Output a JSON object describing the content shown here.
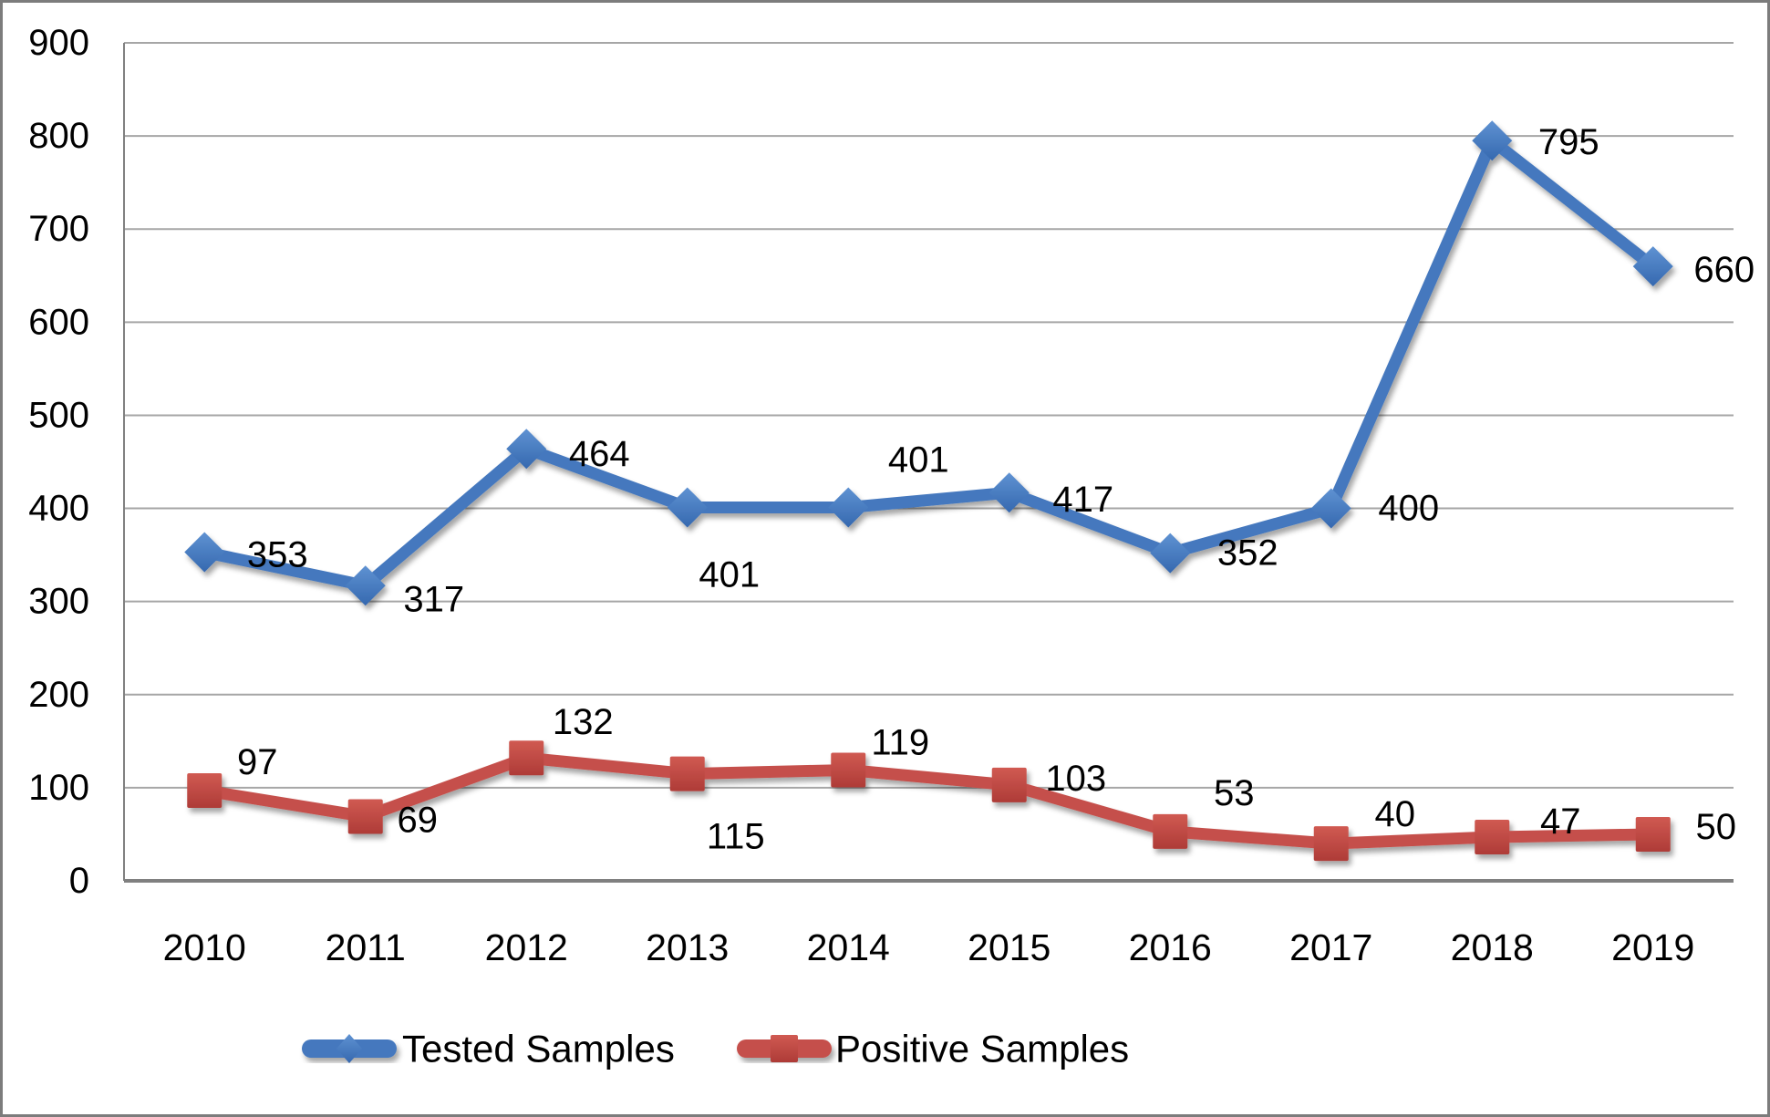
{
  "frame": {
    "background": "#FFFFFF",
    "border_color": "#7C7C7C"
  },
  "chart_data": {
    "type": "line",
    "categories": [
      "2010",
      "2011",
      "2012",
      "2013",
      "2014",
      "2015",
      "2016",
      "2017",
      "2018",
      "2019"
    ],
    "series": [
      {
        "name": "Tested Samples",
        "marker": "diamond",
        "line_color": "#4478BE",
        "marker_color_top": "#5F92D2",
        "marker_color_bottom": "#3568AF",
        "values": [
          353,
          317,
          464,
          401,
          401,
          417,
          352,
          400,
          795,
          660
        ],
        "data_labels": [
          "353",
          "317",
          "464",
          "401",
          "401",
          "417",
          "352",
          "400",
          "795",
          "660"
        ],
        "label_offsets": [
          [
            80,
            3
          ],
          [
            75,
            15
          ],
          [
            80,
            6
          ],
          [
            46,
            74
          ],
          [
            77,
            -52
          ],
          [
            81,
            8
          ],
          [
            85,
            0
          ],
          [
            85,
            0
          ],
          [
            84,
            2
          ],
          [
            78,
            4
          ]
        ]
      },
      {
        "name": "Positive Samples",
        "marker": "square",
        "line_color": "#C5504B",
        "marker_color_top": "#D05A52",
        "marker_color_bottom": "#AE3B37",
        "values": [
          97,
          69,
          132,
          115,
          119,
          103,
          53,
          40,
          47,
          50
        ],
        "data_labels": [
          "97",
          "69",
          "132",
          "115",
          "119",
          "103",
          "53",
          "40",
          "47",
          "50"
        ],
        "label_offsets": [
          [
            58,
            -31
          ],
          [
            57,
            4
          ],
          [
            62,
            -39
          ],
          [
            53,
            69
          ],
          [
            57,
            -30
          ],
          [
            73,
            -7
          ],
          [
            70,
            -42
          ],
          [
            70,
            -32
          ],
          [
            75,
            -17
          ],
          [
            69,
            -8
          ]
        ]
      }
    ],
    "ylim": [
      0,
      900
    ],
    "ytick_step": 100,
    "ytick_labels": [
      "0",
      "100",
      "200",
      "300",
      "400",
      "500",
      "600",
      "700",
      "800",
      "900"
    ],
    "grid": "horizontal",
    "legend_position": "bottom",
    "legend_labels": [
      "Tested Samples",
      "Positive Samples"
    ],
    "gridline_color": "#A6A6A6",
    "axis_color": "#808080",
    "label_color": "#000000"
  }
}
